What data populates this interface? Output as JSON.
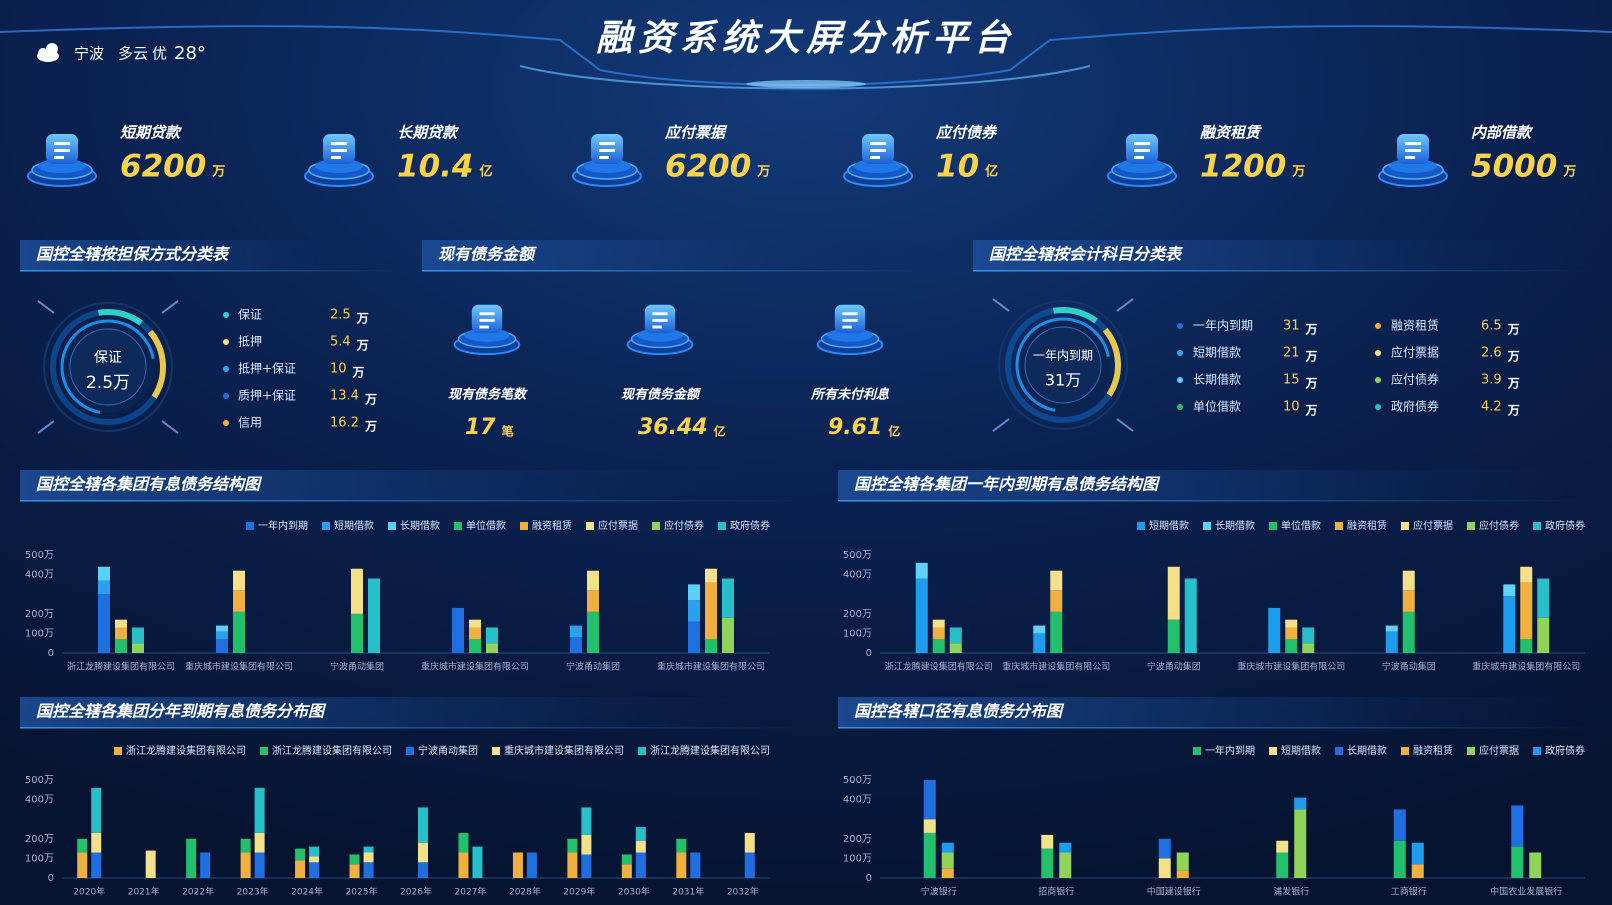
{
  "header": {
    "title": "融资系统大屏分析平台",
    "city": "宁波",
    "weather": "多云",
    "air": "优",
    "temperature": "28°"
  },
  "kpis": [
    {
      "label": "短期贷款",
      "value": 6200,
      "unit": "万"
    },
    {
      "label": "长期贷款",
      "value": 10.4,
      "unit": "亿"
    },
    {
      "label": "应付票据",
      "value": 6200,
      "unit": "万"
    },
    {
      "label": "应付债券",
      "value": 10,
      "unit": "亿"
    },
    {
      "label": "融资租赁",
      "value": 1200,
      "unit": "万"
    },
    {
      "label": "内部借款",
      "value": 5000,
      "unit": "万"
    }
  ],
  "guarantee": {
    "title": "国控全辖按担保方式分类表",
    "center_label": "保证",
    "center_value": "2.5万",
    "items": [
      {
        "name": "保证",
        "value": 2.5,
        "unit": "万",
        "color": "#2fd0c8"
      },
      {
        "name": "抵押",
        "value": 5.4,
        "unit": "万",
        "color": "#f5e08a"
      },
      {
        "name": "抵押+保证",
        "value": 10,
        "unit": "万",
        "color": "#2aa8f0"
      },
      {
        "name": "质押+保证",
        "value": 13.4,
        "unit": "万",
        "color": "#1f6fe0"
      },
      {
        "name": "信用",
        "value": 16.2,
        "unit": "万",
        "color": "#f0b040"
      }
    ]
  },
  "debt": {
    "title": "现有债务金额",
    "items": [
      {
        "label": "现有债务笔数",
        "value": 17,
        "unit": "笔"
      },
      {
        "label": "现有债务金额",
        "value": 36.44,
        "unit": "亿"
      },
      {
        "label": "所有未付利息",
        "value": 9.61,
        "unit": "亿"
      }
    ]
  },
  "accounts": {
    "title": "国控全辖按会计科目分类表",
    "center_label": "一年内到期",
    "center_value": "31万",
    "items": [
      {
        "name": "一年内到期",
        "value": 31,
        "unit": "万",
        "color": "#1f6fe0"
      },
      {
        "name": "短期借款",
        "value": 21,
        "unit": "万",
        "color": "#2aa8f0"
      },
      {
        "name": "长期借款",
        "value": 15,
        "unit": "万",
        "color": "#5bd0f5"
      },
      {
        "name": "单位借款",
        "value": 10,
        "unit": "万",
        "color": "#22c06a"
      },
      {
        "name": "融资租赁",
        "value": 6.5,
        "unit": "万",
        "color": "#f0b040"
      },
      {
        "name": "应付票据",
        "value": 2.6,
        "unit": "万",
        "color": "#f5e08a"
      },
      {
        "name": "应付债券",
        "value": 3.9,
        "unit": "万",
        "color": "#8fd35a"
      },
      {
        "name": "政府债券",
        "value": 4.2,
        "unit": "万",
        "color": "#27c0c8"
      }
    ]
  },
  "chart_data": [
    {
      "type": "bar",
      "title": "国控全辖各集团有息债务结构图",
      "categories": [
        "浙江龙腾建设集团有限公司",
        "重庆城市建设集团有限公司",
        "宁波甬动集团",
        "重庆城市建设集团有限公司",
        "宁波甬动集团",
        "重庆城市建设集团有限公司"
      ],
      "series": [
        {
          "name": "一年内到期",
          "color": "#1f6fe0",
          "stack": 0,
          "values": [
            300,
            70,
            0,
            230,
            80,
            160
          ]
        },
        {
          "name": "短期借款",
          "color": "#2aa0f0",
          "stack": 0,
          "values": [
            70,
            40,
            0,
            0,
            60,
            110
          ]
        },
        {
          "name": "长期借款",
          "color": "#5bd0f5",
          "stack": 0,
          "values": [
            70,
            30,
            0,
            0,
            0,
            80
          ]
        },
        {
          "name": "单位借款",
          "color": "#22c06a",
          "stack": 1,
          "values": [
            70,
            210,
            200,
            70,
            210,
            70
          ]
        },
        {
          "name": "融资租赁",
          "color": "#f0b040",
          "stack": 1,
          "values": [
            60,
            110,
            0,
            60,
            110,
            290
          ]
        },
        {
          "name": "应付票据",
          "color": "#f5e08a",
          "stack": 1,
          "values": [
            40,
            100,
            230,
            40,
            100,
            70
          ]
        },
        {
          "name": "应付债券",
          "color": "#8fd35a",
          "stack": 2,
          "values": [
            50,
            0,
            0,
            50,
            0,
            180
          ]
        },
        {
          "name": "政府债券",
          "color": "#27c0c8",
          "stack": 2,
          "values": [
            80,
            0,
            380,
            80,
            0,
            200
          ]
        }
      ],
      "ylim": [
        0,
        500
      ],
      "yticks": [
        0,
        {
          "value": 100,
          "label": "100万"
        },
        {
          "value": 200,
          "label": "200万"
        },
        {
          "value": 400,
          "label": "400万"
        },
        {
          "value": 500,
          "label": "500万"
        }
      ],
      "grid": false
    },
    {
      "type": "bar",
      "title": "国控全辖各集团一年内到期有息债务结构图",
      "categories": [
        "浙江龙腾建设集团有限公司",
        "重庆城市建设集团有限公司",
        "宁波甬动集团",
        "重庆城市建设集团有限公司",
        "宁波甬动集团",
        "重庆城市建设集团有限公司"
      ],
      "series": [
        {
          "name": "短期借款",
          "color": "#1e9cf0",
          "stack": 0,
          "values": [
            380,
            100,
            0,
            230,
            110,
            290
          ]
        },
        {
          "name": "长期借款",
          "color": "#5fd2f7",
          "stack": 0,
          "values": [
            80,
            40,
            0,
            0,
            30,
            60
          ]
        },
        {
          "name": "单位借款",
          "color": "#22c06a",
          "stack": 1,
          "values": [
            70,
            210,
            170,
            70,
            210,
            70
          ]
        },
        {
          "name": "融资租赁",
          "color": "#f0b040",
          "stack": 1,
          "values": [
            60,
            110,
            0,
            60,
            110,
            290
          ]
        },
        {
          "name": "应付票据",
          "color": "#f5e08a",
          "stack": 1,
          "values": [
            40,
            100,
            270,
            40,
            100,
            80
          ]
        },
        {
          "name": "应付债券",
          "color": "#8fd35a",
          "stack": 2,
          "values": [
            50,
            0,
            0,
            50,
            0,
            180
          ]
        },
        {
          "name": "政府债券",
          "color": "#27c0c8",
          "stack": 2,
          "values": [
            80,
            0,
            380,
            80,
            0,
            200
          ]
        }
      ],
      "ylim": [
        0,
        500
      ],
      "yticks": [
        0,
        {
          "value": 100,
          "label": "100万"
        },
        {
          "value": 200,
          "label": "200万"
        },
        {
          "value": 400,
          "label": "400万"
        },
        {
          "value": 500,
          "label": "500万"
        }
      ],
      "grid": false
    },
    {
      "type": "bar",
      "title": "国控全辖各集团分年到期有息债务分布图",
      "categories": [
        "2020年",
        "2021年",
        "2022年",
        "2023年",
        "2024年",
        "2025年",
        "2026年",
        "2027年",
        "2028年",
        "2029年",
        "2030年",
        "2031年",
        "2032年"
      ],
      "series": [
        {
          "name": "浙江龙腾建设集团有限公司",
          "color": "#f0b040",
          "stack": 0,
          "values": [
            130,
            0,
            0,
            130,
            90,
            70,
            0,
            130,
            130,
            130,
            70,
            130,
            0
          ]
        },
        {
          "name": "浙江龙腾建设集团有限公司",
          "color": "#22c06a",
          "stack": 0,
          "values": [
            70,
            0,
            200,
            70,
            60,
            50,
            0,
            100,
            0,
            70,
            50,
            70,
            0
          ]
        },
        {
          "name": "宁波甬动集团",
          "color": "#1f6fe0",
          "stack": 1,
          "values": [
            130,
            0,
            130,
            130,
            80,
            80,
            80,
            0,
            130,
            120,
            130,
            130,
            130
          ]
        },
        {
          "name": "重庆城市建设集团有限公司",
          "color": "#f5e08a",
          "stack": 1,
          "values": [
            100,
            140,
            0,
            100,
            30,
            50,
            100,
            0,
            0,
            100,
            60,
            0,
            100
          ]
        },
        {
          "name": "浙江龙腾建设集团有限公司",
          "color": "#27c0c8",
          "stack": 1,
          "values": [
            230,
            0,
            0,
            230,
            50,
            30,
            180,
            160,
            0,
            140,
            70,
            0,
            0
          ]
        }
      ],
      "ylim": [
        0,
        500
      ],
      "yticks": [
        0,
        {
          "value": 100,
          "label": "100万"
        },
        {
          "value": 200,
          "label": "200万"
        },
        {
          "value": 400,
          "label": "400万"
        },
        {
          "value": 500,
          "label": "500万"
        }
      ],
      "grid": false
    },
    {
      "type": "bar",
      "title": "国控各辖口径有息债务分布图",
      "categories": [
        "宁波银行",
        "招商银行",
        "中国建设银行",
        "浦发银行",
        "工商银行",
        "中国农业发展银行"
      ],
      "series": [
        {
          "name": "一年内到期",
          "color": "#22c06a",
          "stack": 0,
          "values": [
            230,
            150,
            0,
            130,
            190,
            160
          ]
        },
        {
          "name": "短期借款",
          "color": "#f5e08a",
          "stack": 0,
          "values": [
            70,
            70,
            100,
            60,
            0,
            0
          ]
        },
        {
          "name": "长期借款",
          "color": "#1f6fe0",
          "stack": 0,
          "values": [
            200,
            0,
            100,
            0,
            160,
            210
          ]
        },
        {
          "name": "融资租赁",
          "color": "#f0b040",
          "stack": 1,
          "values": [
            50,
            0,
            40,
            0,
            70,
            0
          ]
        },
        {
          "name": "应付票据",
          "color": "#8fd35a",
          "stack": 1,
          "values": [
            80,
            130,
            90,
            350,
            0,
            130
          ]
        },
        {
          "name": "政府债券",
          "color": "#1e9cf0",
          "stack": 1,
          "values": [
            50,
            50,
            0,
            60,
            110,
            0
          ]
        }
      ],
      "ylim": [
        0,
        500
      ],
      "yticks": [
        0,
        {
          "value": 100,
          "label": "100万"
        },
        {
          "value": 200,
          "label": "200万"
        },
        {
          "value": 400,
          "label": "400万"
        },
        {
          "value": 500,
          "label": "500万"
        }
      ],
      "grid": false
    }
  ]
}
